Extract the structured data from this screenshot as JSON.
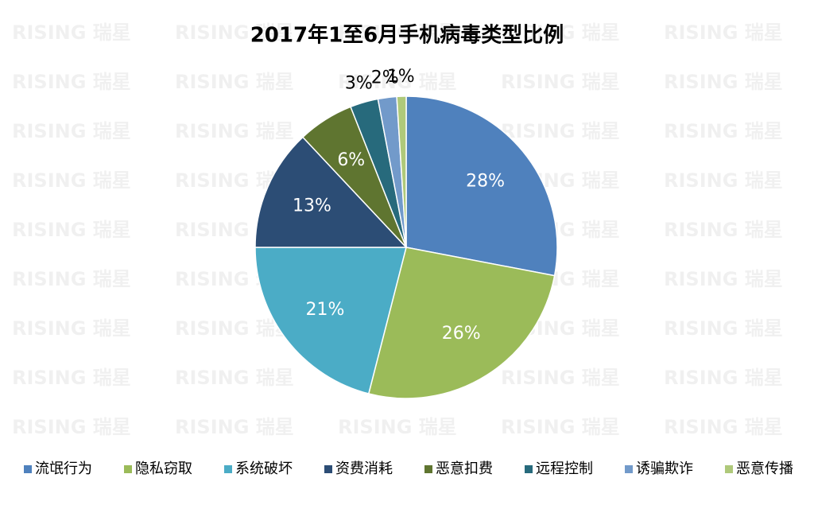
{
  "chart_data": {
    "type": "pie",
    "title": "2017年1至6月手机病毒类型比例",
    "watermark": "RISING 瑞星",
    "categories": [
      "流氓行为",
      "隐私窃取",
      "系统破坏",
      "资费消耗",
      "恶意扣费",
      "远程控制",
      "诱骗欺诈",
      "恶意传播"
    ],
    "values": [
      28,
      26,
      21,
      13,
      6,
      3,
      2,
      1
    ],
    "value_labels": [
      "28%",
      "26%",
      "21%",
      "13%",
      "6%",
      "3%",
      "2%",
      "1%"
    ],
    "colors": [
      "#4f81bd",
      "#9bbb59",
      "#4bacc6",
      "#2c4d75",
      "#5f7530",
      "#276a7c",
      "#729aca",
      "#afc97a"
    ],
    "legend": "bottom"
  }
}
